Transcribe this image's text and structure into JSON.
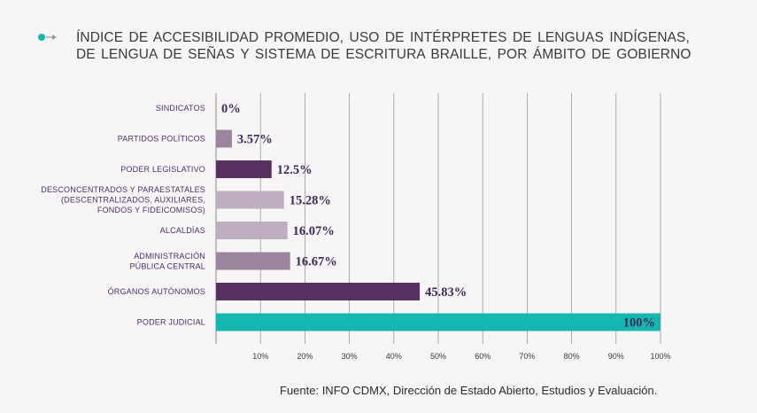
{
  "title": {
    "line1": "ÍNDICE DE ACCESIBILIDAD PROMEDIO, USO DE INTÉRPRETES DE LENGUAS INDÍGENAS,",
    "line2": "DE LENGUA DE SEÑAS Y SISTEMA DE ESCRITURA BRAILLE, POR ÁMBITO DE GOBIERNO"
  },
  "source": "Fuente: INFO CDMX, Dirección de Estado Abierto, Estudios y Evaluación.",
  "chart_data": {
    "type": "bar",
    "orientation": "horizontal",
    "title": "ÍNDICE DE ACCESIBILIDAD PROMEDIO, USO DE INTÉRPRETES DE LENGUAS INDÍGENAS, DE LENGUA DE SEÑAS Y SISTEMA DE ESCRITURA BRAILLE, POR ÁMBITO DE GOBIERNO",
    "xlim": [
      0,
      100
    ],
    "grid": true,
    "ticks": [
      "10%",
      "20%",
      "30%",
      "40%",
      "50%",
      "60%",
      "70%",
      "80%",
      "90%",
      "100%"
    ],
    "tick_values": [
      10,
      20,
      30,
      40,
      50,
      60,
      70,
      80,
      90,
      100
    ],
    "bars": [
      {
        "label": [
          "SINDICATOS"
        ],
        "value": 0,
        "value_label": "0%",
        "color": "#8c7296"
      },
      {
        "label": [
          "PARTIDOS POLÍTICOS"
        ],
        "value": 3.57,
        "value_label": "3.57%",
        "color": "#9c849e"
      },
      {
        "label": [
          "PODER LEGISLATIVO"
        ],
        "value": 12.5,
        "value_label": "12.5%",
        "color": "#583163"
      },
      {
        "label": [
          "DESCONCENTRADOS Y PARAESTATALES",
          "(DESCENTRALIZADOS, AUXILIARES,",
          "FONDOS Y FIDEICOMISOS)"
        ],
        "value": 15.28,
        "value_label": "15.28%",
        "color": "#beaec1"
      },
      {
        "label": [
          "ALCALDÍAS"
        ],
        "value": 16.07,
        "value_label": "16.07%",
        "color": "#beaec1"
      },
      {
        "label": [
          "ADMINISTRACIÓN",
          "PÚBLICA CENTRAL"
        ],
        "value": 16.67,
        "value_label": "16.67%",
        "color": "#9c849e"
      },
      {
        "label": [
          "ÓRGANOS AUTÓNOMOS"
        ],
        "value": 45.83,
        "value_label": "45.83%",
        "color": "#583163"
      },
      {
        "label": [
          "PODER JUDICIAL"
        ],
        "value": 100,
        "value_label": "100%",
        "color": "#16b7b1"
      }
    ]
  },
  "colors": {
    "accent": "#16b7b1",
    "grid": "#999999",
    "text_dark": "#3d2a58"
  }
}
